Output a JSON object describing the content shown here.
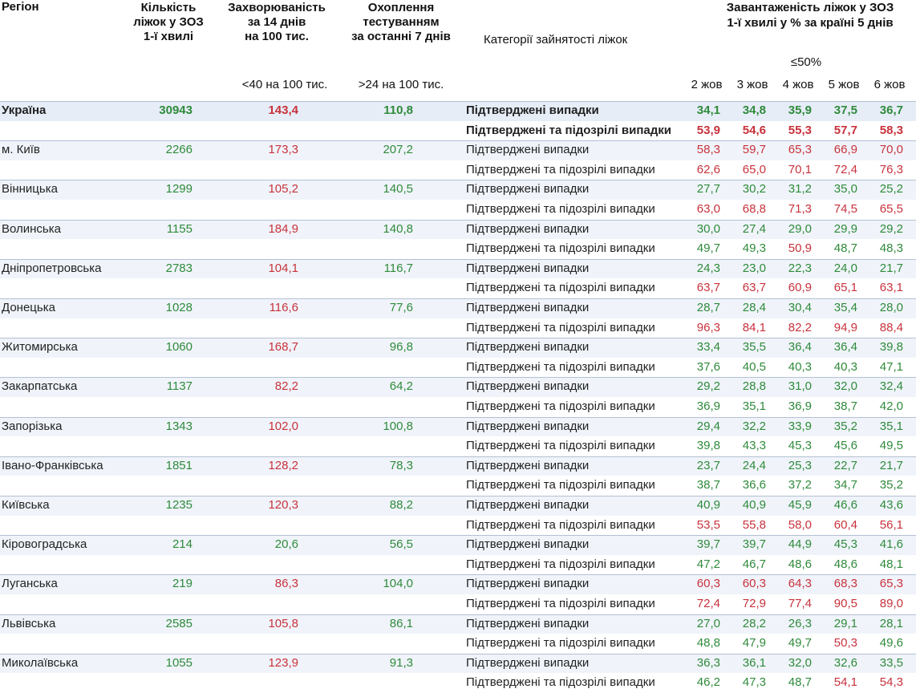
{
  "header": {
    "region": "Регіон",
    "beds": [
      "Кількість",
      "ліжок у ЗОЗ",
      "1-ї хвилі"
    ],
    "incidence": [
      "Захворюваність",
      "за 14 днів",
      "на 100 тис."
    ],
    "testing": [
      "Охоплення",
      "тестуванням",
      "за останні 7 днів"
    ],
    "category": "Категорії зайнятості ліжок",
    "load": [
      "Завантаженість ліжок у ЗОЗ",
      "1-ї хвилі у % за країні 5 днів"
    ],
    "load_threshold": "≤50%",
    "incidence_threshold": "<40 на 100 тис.",
    "testing_threshold": ">24 на 100 тис.",
    "days": [
      "2 жов",
      "3 жов",
      "4 жов",
      "5 жов",
      "6 жов"
    ]
  },
  "table": {
    "rows": [
      {
        "region": "Україна",
        "bold": true,
        "beds": "30943",
        "beds_color": "#2f8a3b",
        "incidence": "143,4",
        "incidence_color": "#c8323c",
        "testing": "110,8",
        "testing_color": "#2f8a3b",
        "lines": [
          {
            "category": "Підтверджені випадки",
            "values": [
              "34,1",
              "34,8",
              "35,9",
              "37,5",
              "36,7"
            ],
            "colors": [
              "#2f8a3b",
              "#2f8a3b",
              "#2f8a3b",
              "#2f8a3b",
              "#2f8a3b"
            ]
          },
          {
            "category": "Підтверджені та підозрілі випадки",
            "values": [
              "53,9",
              "54,6",
              "55,3",
              "57,7",
              "58,3"
            ],
            "colors": [
              "#c8323c",
              "#c8323c",
              "#c8323c",
              "#c8323c",
              "#c8323c"
            ]
          }
        ]
      },
      {
        "region": "м. Київ",
        "beds": "2266",
        "beds_color": "#2f8a3b",
        "incidence": "173,3",
        "incidence_color": "#c8323c",
        "testing": "207,2",
        "testing_color": "#2f8a3b",
        "lines": [
          {
            "category": "Підтверджені випадки",
            "values": [
              "58,3",
              "59,7",
              "65,3",
              "66,9",
              "70,0"
            ],
            "colors": [
              "#c8323c",
              "#c8323c",
              "#c8323c",
              "#c8323c",
              "#c8323c"
            ]
          },
          {
            "category": "Підтверджені та підозрілі випадки",
            "values": [
              "62,6",
              "65,0",
              "70,1",
              "72,4",
              "76,3"
            ],
            "colors": [
              "#c8323c",
              "#c8323c",
              "#c8323c",
              "#c8323c",
              "#c8323c"
            ]
          }
        ]
      },
      {
        "region": "Вінницька",
        "beds": "1299",
        "beds_color": "#2f8a3b",
        "incidence": "105,2",
        "incidence_color": "#c8323c",
        "testing": "140,5",
        "testing_color": "#2f8a3b",
        "lines": [
          {
            "category": "Підтверджені випадки",
            "values": [
              "27,7",
              "30,2",
              "31,2",
              "35,0",
              "25,2"
            ],
            "colors": [
              "#2f8a3b",
              "#2f8a3b",
              "#2f8a3b",
              "#2f8a3b",
              "#2f8a3b"
            ]
          },
          {
            "category": "Підтверджені та підозрілі випадки",
            "values": [
              "63,0",
              "68,8",
              "71,3",
              "74,5",
              "65,5"
            ],
            "colors": [
              "#c8323c",
              "#c8323c",
              "#c8323c",
              "#c8323c",
              "#c8323c"
            ]
          }
        ]
      },
      {
        "region": "Волинська",
        "beds": "1155",
        "beds_color": "#2f8a3b",
        "incidence": "184,9",
        "incidence_color": "#c8323c",
        "testing": "140,8",
        "testing_color": "#2f8a3b",
        "lines": [
          {
            "category": "Підтверджені випадки",
            "values": [
              "30,0",
              "27,4",
              "29,0",
              "29,9",
              "29,2"
            ],
            "colors": [
              "#2f8a3b",
              "#2f8a3b",
              "#2f8a3b",
              "#2f8a3b",
              "#2f8a3b"
            ]
          },
          {
            "category": "Підтверджені та підозрілі випадки",
            "values": [
              "49,7",
              "49,3",
              "50,9",
              "48,7",
              "48,3"
            ],
            "colors": [
              "#2f8a3b",
              "#2f8a3b",
              "#c8323c",
              "#2f8a3b",
              "#2f8a3b"
            ]
          }
        ]
      },
      {
        "region": "Дніпропетровська",
        "beds": "2783",
        "beds_color": "#2f8a3b",
        "incidence": "104,1",
        "incidence_color": "#c8323c",
        "testing": "116,7",
        "testing_color": "#2f8a3b",
        "lines": [
          {
            "category": "Підтверджені випадки",
            "values": [
              "24,3",
              "23,0",
              "22,3",
              "24,0",
              "21,7"
            ],
            "colors": [
              "#2f8a3b",
              "#2f8a3b",
              "#2f8a3b",
              "#2f8a3b",
              "#2f8a3b"
            ]
          },
          {
            "category": "Підтверджені та підозрілі випадки",
            "values": [
              "63,7",
              "63,7",
              "60,9",
              "65,1",
              "63,1"
            ],
            "colors": [
              "#c8323c",
              "#c8323c",
              "#c8323c",
              "#c8323c",
              "#c8323c"
            ]
          }
        ]
      },
      {
        "region": "Донецька",
        "beds": "1028",
        "beds_color": "#2f8a3b",
        "incidence": "116,6",
        "incidence_color": "#c8323c",
        "testing": "77,6",
        "testing_color": "#2f8a3b",
        "lines": [
          {
            "category": "Підтверджені випадки",
            "values": [
              "28,7",
              "28,4",
              "30,4",
              "35,4",
              "28,0"
            ],
            "colors": [
              "#2f8a3b",
              "#2f8a3b",
              "#2f8a3b",
              "#2f8a3b",
              "#2f8a3b"
            ]
          },
          {
            "category": "Підтверджені та підозрілі випадки",
            "values": [
              "96,3",
              "84,1",
              "82,2",
              "94,9",
              "88,4"
            ],
            "colors": [
              "#c8323c",
              "#c8323c",
              "#c8323c",
              "#c8323c",
              "#c8323c"
            ]
          }
        ]
      },
      {
        "region": "Житомирська",
        "beds": "1060",
        "beds_color": "#2f8a3b",
        "incidence": "168,7",
        "incidence_color": "#c8323c",
        "testing": "96,8",
        "testing_color": "#2f8a3b",
        "lines": [
          {
            "category": "Підтверджені випадки",
            "values": [
              "33,4",
              "35,5",
              "36,4",
              "36,4",
              "39,8"
            ],
            "colors": [
              "#2f8a3b",
              "#2f8a3b",
              "#2f8a3b",
              "#2f8a3b",
              "#2f8a3b"
            ]
          },
          {
            "category": "Підтверджені та підозрілі випадки",
            "values": [
              "37,6",
              "40,5",
              "40,3",
              "40,3",
              "47,1"
            ],
            "colors": [
              "#2f8a3b",
              "#2f8a3b",
              "#2f8a3b",
              "#2f8a3b",
              "#2f8a3b"
            ]
          }
        ]
      },
      {
        "region": "Закарпатська",
        "beds": "1137",
        "beds_color": "#2f8a3b",
        "incidence": "82,2",
        "incidence_color": "#c8323c",
        "testing": "64,2",
        "testing_color": "#2f8a3b",
        "lines": [
          {
            "category": "Підтверджені випадки",
            "values": [
              "29,2",
              "28,8",
              "31,0",
              "32,0",
              "32,4"
            ],
            "colors": [
              "#2f8a3b",
              "#2f8a3b",
              "#2f8a3b",
              "#2f8a3b",
              "#2f8a3b"
            ]
          },
          {
            "category": "Підтверджені та підозрілі випадки",
            "values": [
              "36,9",
              "35,1",
              "36,9",
              "38,7",
              "42,0"
            ],
            "colors": [
              "#2f8a3b",
              "#2f8a3b",
              "#2f8a3b",
              "#2f8a3b",
              "#2f8a3b"
            ]
          }
        ]
      },
      {
        "region": "Запорізька",
        "beds": "1343",
        "beds_color": "#2f8a3b",
        "incidence": "102,0",
        "incidence_color": "#c8323c",
        "testing": "100,8",
        "testing_color": "#2f8a3b",
        "lines": [
          {
            "category": "Підтверджені випадки",
            "values": [
              "29,4",
              "32,2",
              "33,9",
              "35,2",
              "35,1"
            ],
            "colors": [
              "#2f8a3b",
              "#2f8a3b",
              "#2f8a3b",
              "#2f8a3b",
              "#2f8a3b"
            ]
          },
          {
            "category": "Підтверджені та підозрілі випадки",
            "values": [
              "39,8",
              "43,3",
              "45,3",
              "45,6",
              "49,5"
            ],
            "colors": [
              "#2f8a3b",
              "#2f8a3b",
              "#2f8a3b",
              "#2f8a3b",
              "#2f8a3b"
            ]
          }
        ]
      },
      {
        "region": "Івано-Франківська",
        "beds": "1851",
        "beds_color": "#2f8a3b",
        "incidence": "128,2",
        "incidence_color": "#c8323c",
        "testing": "78,3",
        "testing_color": "#2f8a3b",
        "lines": [
          {
            "category": "Підтверджені випадки",
            "values": [
              "23,7",
              "24,4",
              "25,3",
              "22,7",
              "21,7"
            ],
            "colors": [
              "#2f8a3b",
              "#2f8a3b",
              "#2f8a3b",
              "#2f8a3b",
              "#2f8a3b"
            ]
          },
          {
            "category": "Підтверджені та підозрілі випадки",
            "values": [
              "38,7",
              "36,6",
              "37,2",
              "34,7",
              "35,2"
            ],
            "colors": [
              "#2f8a3b",
              "#2f8a3b",
              "#2f8a3b",
              "#2f8a3b",
              "#2f8a3b"
            ]
          }
        ]
      },
      {
        "region": "Київська",
        "beds": "1235",
        "beds_color": "#2f8a3b",
        "incidence": "120,3",
        "incidence_color": "#c8323c",
        "testing": "88,2",
        "testing_color": "#2f8a3b",
        "lines": [
          {
            "category": "Підтверджені випадки",
            "values": [
              "40,9",
              "40,9",
              "45,9",
              "46,6",
              "43,6"
            ],
            "colors": [
              "#2f8a3b",
              "#2f8a3b",
              "#2f8a3b",
              "#2f8a3b",
              "#2f8a3b"
            ]
          },
          {
            "category": "Підтверджені та підозрілі випадки",
            "values": [
              "53,5",
              "55,8",
              "58,0",
              "60,4",
              "56,1"
            ],
            "colors": [
              "#c8323c",
              "#c8323c",
              "#c8323c",
              "#c8323c",
              "#c8323c"
            ]
          }
        ]
      },
      {
        "region": "Кіровоградська",
        "beds": "214",
        "beds_color": "#2f8a3b",
        "incidence": "20,6",
        "incidence_color": "#2f8a3b",
        "testing": "56,5",
        "testing_color": "#2f8a3b",
        "lines": [
          {
            "category": "Підтверджені випадки",
            "values": [
              "39,7",
              "39,7",
              "44,9",
              "45,3",
              "41,6"
            ],
            "colors": [
              "#2f8a3b",
              "#2f8a3b",
              "#2f8a3b",
              "#2f8a3b",
              "#2f8a3b"
            ]
          },
          {
            "category": "Підтверджені та підозрілі випадки",
            "values": [
              "47,2",
              "46,7",
              "48,6",
              "48,6",
              "48,1"
            ],
            "colors": [
              "#2f8a3b",
              "#2f8a3b",
              "#2f8a3b",
              "#2f8a3b",
              "#2f8a3b"
            ]
          }
        ]
      },
      {
        "region": "Луганська",
        "beds": "219",
        "beds_color": "#2f8a3b",
        "incidence": "86,3",
        "incidence_color": "#c8323c",
        "testing": "104,0",
        "testing_color": "#2f8a3b",
        "lines": [
          {
            "category": "Підтверджені випадки",
            "values": [
              "60,3",
              "60,3",
              "64,3",
              "68,3",
              "65,3"
            ],
            "colors": [
              "#c8323c",
              "#c8323c",
              "#c8323c",
              "#c8323c",
              "#c8323c"
            ]
          },
          {
            "category": "Підтверджені та підозрілі випадки",
            "values": [
              "72,4",
              "72,9",
              "77,4",
              "90,5",
              "89,0"
            ],
            "colors": [
              "#c8323c",
              "#c8323c",
              "#c8323c",
              "#c8323c",
              "#c8323c"
            ]
          }
        ]
      },
      {
        "region": "Львівська",
        "beds": "2585",
        "beds_color": "#2f8a3b",
        "incidence": "105,8",
        "incidence_color": "#c8323c",
        "testing": "86,1",
        "testing_color": "#2f8a3b",
        "lines": [
          {
            "category": "Підтверджені випадки",
            "values": [
              "27,0",
              "28,2",
              "26,3",
              "29,1",
              "28,1"
            ],
            "colors": [
              "#2f8a3b",
              "#2f8a3b",
              "#2f8a3b",
              "#2f8a3b",
              "#2f8a3b"
            ]
          },
          {
            "category": "Підтверджені та підозрілі випадки",
            "values": [
              "48,8",
              "47,9",
              "49,7",
              "50,3",
              "49,6"
            ],
            "colors": [
              "#2f8a3b",
              "#2f8a3b",
              "#2f8a3b",
              "#c8323c",
              "#2f8a3b"
            ]
          }
        ]
      },
      {
        "region": "Миколаївська",
        "beds": "1055",
        "beds_color": "#2f8a3b",
        "incidence": "123,9",
        "incidence_color": "#c8323c",
        "testing": "91,3",
        "testing_color": "#2f8a3b",
        "lines": [
          {
            "category": "Підтверджені випадки",
            "values": [
              "36,3",
              "36,1",
              "32,0",
              "32,6",
              "33,5"
            ],
            "colors": [
              "#2f8a3b",
              "#2f8a3b",
              "#2f8a3b",
              "#2f8a3b",
              "#2f8a3b"
            ]
          },
          {
            "category": "Підтверджені та підозрілі випадки",
            "values": [
              "46,2",
              "47,3",
              "48,7",
              "54,1",
              "54,3"
            ],
            "colors": [
              "#2f8a3b",
              "#2f8a3b",
              "#2f8a3b",
              "#c8323c",
              "#c8323c"
            ]
          }
        ]
      }
    ]
  }
}
